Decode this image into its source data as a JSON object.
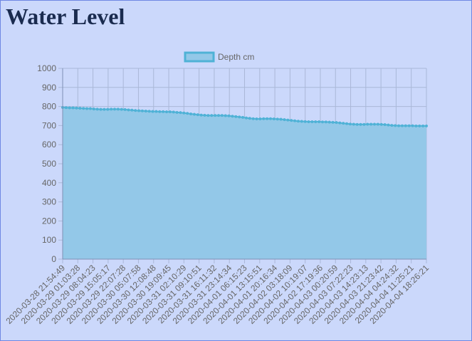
{
  "page": {
    "title": "Water Level"
  },
  "chart_data": {
    "type": "area",
    "title": "",
    "xlabel": "",
    "ylabel": "",
    "ylim": [
      0,
      1000
    ],
    "yticks": [
      0,
      100,
      200,
      300,
      400,
      500,
      600,
      700,
      800,
      900,
      1000
    ],
    "legend": {
      "position": "top",
      "entries": [
        "Depth cm"
      ]
    },
    "grid": true,
    "colors": {
      "fill": "#93c8e8",
      "line": "#4fb2d6",
      "grid": "#aab8d8",
      "axis": "#7f8fb5",
      "text": "#666666"
    },
    "x_tick_labels": [
      "2020-03-28 21:54:49",
      "2020-03-29 01:03:28",
      "2020-03-29 08:04:23",
      "2020-03-29 15:05:17",
      "2020-03-29 22:07:28",
      "2020-03-30 05:07:58",
      "2020-03-30 12:08:48",
      "2020-03-30 19:09:45",
      "2020-03-31 02:10:29",
      "2020-03-31 09:10:51",
      "2020-03-31 16:11:32",
      "2020-03-31 23:14:34",
      "2020-04-01 06:15:23",
      "2020-04-01 13:15:51",
      "2020-04-01 20:16:34",
      "2020-04-02 03:18:09",
      "2020-04-02 10:19:07",
      "2020-04-02 17:19:36",
      "2020-04-03 00:20:59",
      "2020-04-03 07:22:23",
      "2020-04-03 14:23:13",
      "2020-04-03 21:23:42",
      "2020-04-04 04:24:32",
      "2020-04-04 11:25:21",
      "2020-04-04 18:26:21"
    ],
    "series": [
      {
        "name": "Depth cm",
        "values": [
          795,
          794,
          793,
          793,
          792,
          791,
          790,
          789,
          789,
          787,
          786,
          785,
          785,
          785,
          786,
          786,
          786,
          785,
          784,
          782,
          781,
          779,
          778,
          777,
          776,
          775,
          774,
          774,
          773,
          773,
          772,
          772,
          771,
          769,
          768,
          766,
          764,
          761,
          759,
          757,
          755,
          754,
          753,
          753,
          753,
          753,
          753,
          752,
          751,
          749,
          747,
          745,
          743,
          740,
          738,
          736,
          735,
          735,
          736,
          736,
          736,
          735,
          734,
          733,
          731,
          729,
          727,
          725,
          723,
          722,
          721,
          720,
          720,
          720,
          720,
          719,
          719,
          718,
          717,
          716,
          714,
          712,
          710,
          708,
          707,
          706,
          706,
          706,
          707,
          707,
          707,
          707,
          706,
          705,
          703,
          701,
          700,
          699,
          699,
          699,
          699,
          699,
          698,
          698,
          698,
          698
        ]
      }
    ]
  }
}
